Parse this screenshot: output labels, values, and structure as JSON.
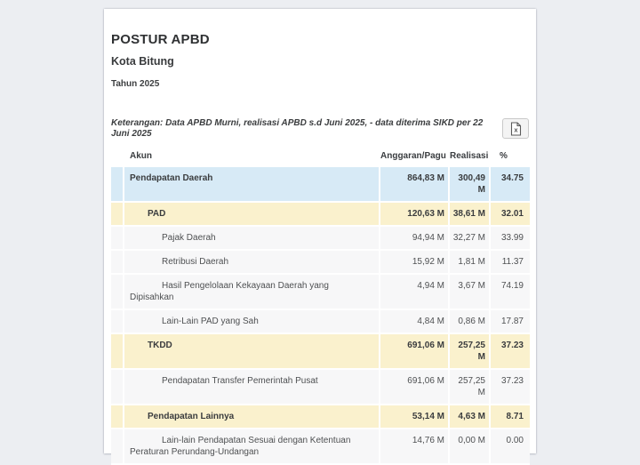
{
  "report": {
    "title": "POSTUR APBD",
    "subtitle": "Kota Bitung",
    "period": "Tahun 2025",
    "note": "Keterangan: Data APBD Murni, realisasi APBD s.d Juni 2025, - data diterima SIKD per 22 Juni 2025",
    "export_button": {
      "icon": "excel-file-icon",
      "glyph": "x"
    }
  },
  "table": {
    "columns": {
      "akun": "Akun",
      "anggaran": "Anggaran/Pagu",
      "realisasi": "Realisasi",
      "pct": "%"
    },
    "rows": [
      {
        "akun": "Pendapatan Daerah",
        "anggaran": "864,83 M",
        "realisasi": "300,49 M",
        "pct": "34.75",
        "level": 1,
        "highlight": "blue"
      },
      {
        "akun": "PAD",
        "anggaran": "120,63 M",
        "realisasi": "38,61 M",
        "pct": "32.01",
        "level": 2,
        "highlight": "yellow"
      },
      {
        "akun": "Pajak Daerah",
        "anggaran": "94,94 M",
        "realisasi": "32,27 M",
        "pct": "33.99",
        "level": 3,
        "highlight": "none"
      },
      {
        "akun": "Retribusi Daerah",
        "anggaran": "15,92 M",
        "realisasi": "1,81 M",
        "pct": "11.37",
        "level": 3,
        "highlight": "none"
      },
      {
        "akun": "Hasil Pengelolaan Kekayaan Daerah yang Dipisahkan",
        "anggaran": "4,94 M",
        "realisasi": "3,67 M",
        "pct": "74.19",
        "level": 3,
        "highlight": "none"
      },
      {
        "akun": "Lain-Lain PAD yang Sah",
        "anggaran": "4,84 M",
        "realisasi": "0,86 M",
        "pct": "17.87",
        "level": 3,
        "highlight": "none"
      },
      {
        "akun": "TKDD",
        "anggaran": "691,06 M",
        "realisasi": "257,25 M",
        "pct": "37.23",
        "level": 2,
        "highlight": "yellow"
      },
      {
        "akun": "Pendapatan Transfer Pemerintah Pusat",
        "anggaran": "691,06 M",
        "realisasi": "257,25 M",
        "pct": "37.23",
        "level": 3,
        "highlight": "none"
      },
      {
        "akun": "Pendapatan Lainnya",
        "anggaran": "53,14 M",
        "realisasi": "4,63 M",
        "pct": "8.71",
        "level": 2,
        "highlight": "yellow"
      },
      {
        "akun": "Lain-lain Pendapatan Sesuai dengan Ketentuan Peraturan Perundang-Undangan",
        "anggaran": "14,76 M",
        "realisasi": "0,00 M",
        "pct": "0.00",
        "level": 3,
        "highlight": "none"
      }
    ]
  },
  "colors": {
    "background": "#eceef2",
    "card": "#ffffff",
    "highlight_blue": "#d7eaf6",
    "highlight_yellow": "#faf1cd",
    "row_plain": "#f7f7f8"
  }
}
